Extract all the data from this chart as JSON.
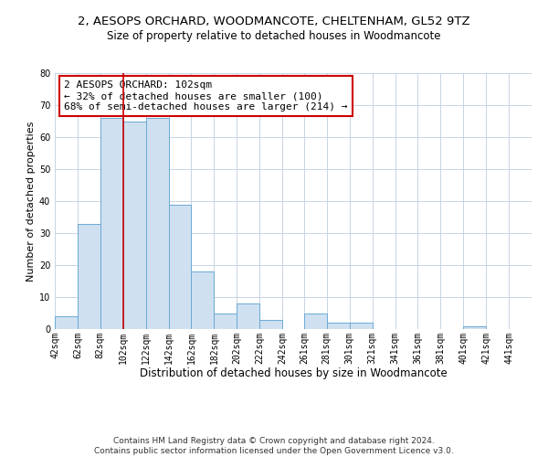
{
  "title": "2, AESOPS ORCHARD, WOODMANCOTE, CHELTENHAM, GL52 9TZ",
  "subtitle": "Size of property relative to detached houses in Woodmancote",
  "xlabel": "Distribution of detached houses by size in Woodmancote",
  "ylabel": "Number of detached properties",
  "bar_edges": [
    42,
    62,
    82,
    102,
    122,
    142,
    162,
    182,
    202,
    222,
    242,
    261,
    281,
    301,
    321,
    341,
    361,
    381,
    401,
    421,
    441
  ],
  "bar_heights": [
    4,
    33,
    66,
    65,
    66,
    39,
    18,
    5,
    8,
    3,
    0,
    5,
    2,
    2,
    0,
    0,
    0,
    0,
    1,
    0,
    0
  ],
  "bar_color": "#cfe0f0",
  "bar_edgecolor": "#6aaad4",
  "ylim": [
    0,
    80
  ],
  "vline_x": 102,
  "vline_color": "#cc0000",
  "annotation_text": "2 AESOPS ORCHARD: 102sqm\n← 32% of detached houses are smaller (100)\n68% of semi-detached houses are larger (214) →",
  "annotation_box_edgecolor": "#cc0000",
  "xtick_labels": [
    "42sqm",
    "62sqm",
    "82sqm",
    "102sqm",
    "122sqm",
    "142sqm",
    "162sqm",
    "182sqm",
    "202sqm",
    "222sqm",
    "242sqm",
    "261sqm",
    "281sqm",
    "301sqm",
    "321sqm",
    "341sqm",
    "361sqm",
    "381sqm",
    "401sqm",
    "421sqm",
    "441sqm"
  ],
  "footnote": "Contains HM Land Registry data © Crown copyright and database right 2024.\nContains public sector information licensed under the Open Government Licence v3.0.",
  "title_fontsize": 9.5,
  "subtitle_fontsize": 8.5,
  "xlabel_fontsize": 8.5,
  "ylabel_fontsize": 8,
  "tick_fontsize": 7,
  "annotation_fontsize": 8,
  "footnote_fontsize": 6.5,
  "background_color": "#ffffff",
  "grid_color": "#c8d4e4"
}
